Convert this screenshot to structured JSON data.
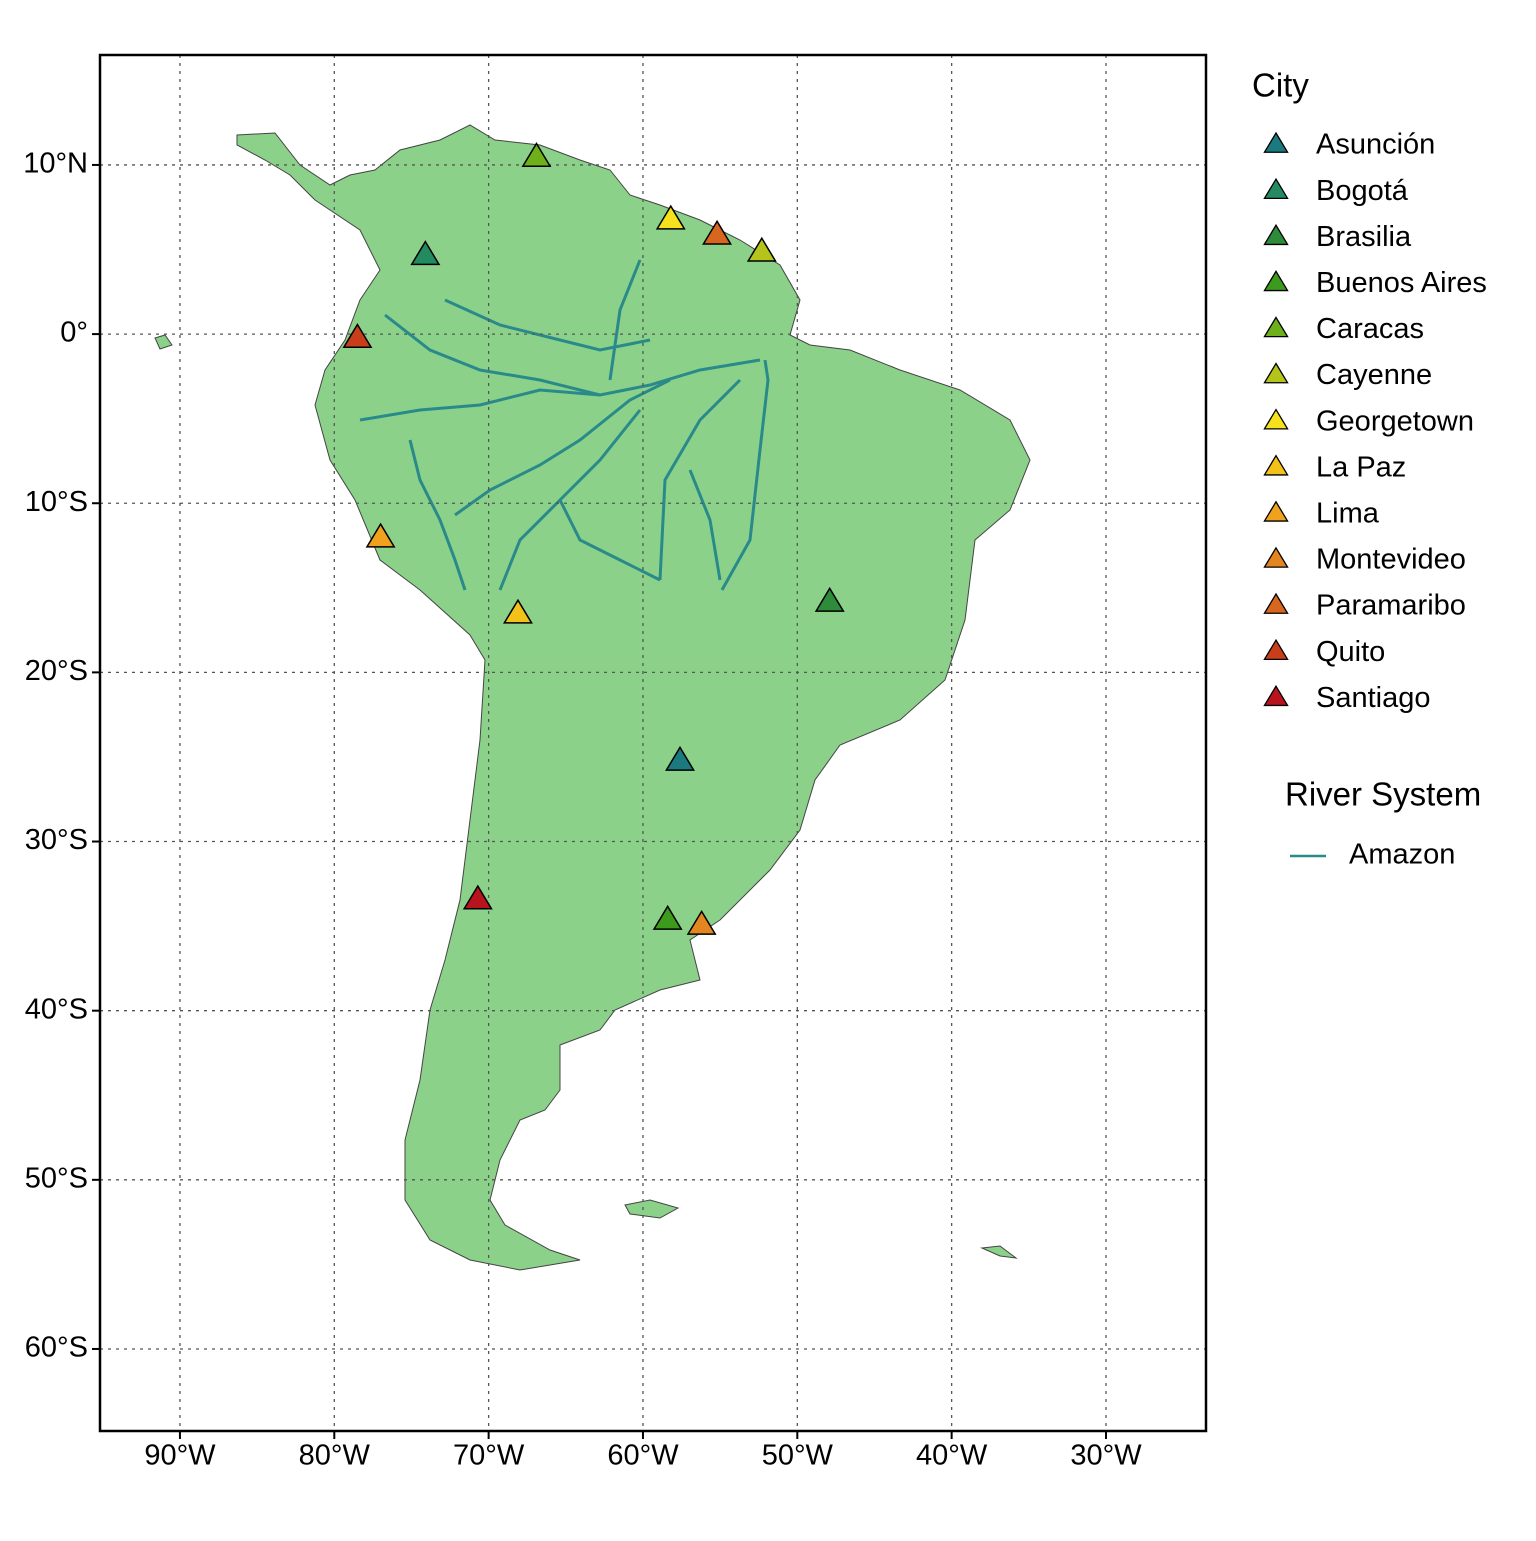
{
  "map": {
    "xlim": [
      -95.18,
      -23.52
    ],
    "ylim": [
      -64.85,
      16.5
    ],
    "xticks": [
      {
        "value": -90,
        "label": "90°W"
      },
      {
        "value": -80,
        "label": "80°W"
      },
      {
        "value": -70,
        "label": "70°W"
      },
      {
        "value": -60,
        "label": "60°W"
      },
      {
        "value": -50,
        "label": "50°W"
      },
      {
        "value": -40,
        "label": "40°W"
      },
      {
        "value": -30,
        "label": "30°W"
      }
    ],
    "yticks": [
      {
        "value": 10,
        "label": "10°N"
      },
      {
        "value": 0,
        "label": "0°"
      },
      {
        "value": -10,
        "label": "10°S"
      },
      {
        "value": -20,
        "label": "20°S"
      },
      {
        "value": -30,
        "label": "30°S"
      },
      {
        "value": -40,
        "label": "40°S"
      },
      {
        "value": -50,
        "label": "50°S"
      },
      {
        "value": -60,
        "label": "60°S"
      }
    ],
    "grid": true,
    "land_color": "#8bd18a",
    "city_legend_title": "City",
    "cities": [
      {
        "name": "Asunción",
        "lon": -57.6,
        "lat": -25.2,
        "color": "#1b7a7f"
      },
      {
        "name": "Bogotá",
        "lon": -74.1,
        "lat": 4.7,
        "color": "#248a62"
      },
      {
        "name": "Brasilia",
        "lon": -47.9,
        "lat": -15.8,
        "color": "#2e8b3a"
      },
      {
        "name": "Buenos Aires",
        "lon": -58.4,
        "lat": -34.6,
        "color": "#3c9a1c"
      },
      {
        "name": "Caracas",
        "lon": -66.9,
        "lat": 10.5,
        "color": "#6db01a"
      },
      {
        "name": "Cayenne",
        "lon": -52.3,
        "lat": 4.9,
        "color": "#b5c41a"
      },
      {
        "name": "Georgetown",
        "lon": -58.2,
        "lat": 6.8,
        "color": "#f6e21c"
      },
      {
        "name": "La Paz",
        "lon": -68.1,
        "lat": -16.5,
        "color": "#f2c21a"
      },
      {
        "name": "Lima",
        "lon": -77.0,
        "lat": -12.0,
        "color": "#f0a21e"
      },
      {
        "name": "Montevideo",
        "lon": -56.2,
        "lat": -34.9,
        "color": "#e48620"
      },
      {
        "name": "Paramaribo",
        "lon": -55.2,
        "lat": 5.9,
        "color": "#d8661e"
      },
      {
        "name": "Quito",
        "lon": -78.5,
        "lat": -0.2,
        "color": "#c83e1a"
      },
      {
        "name": "Santiago",
        "lon": -70.7,
        "lat": -33.4,
        "color": "#b8141e"
      }
    ],
    "rivers": {
      "title": "River System",
      "series": [
        {
          "name": "Amazon",
          "color": "#2a8a8a"
        }
      ]
    }
  }
}
